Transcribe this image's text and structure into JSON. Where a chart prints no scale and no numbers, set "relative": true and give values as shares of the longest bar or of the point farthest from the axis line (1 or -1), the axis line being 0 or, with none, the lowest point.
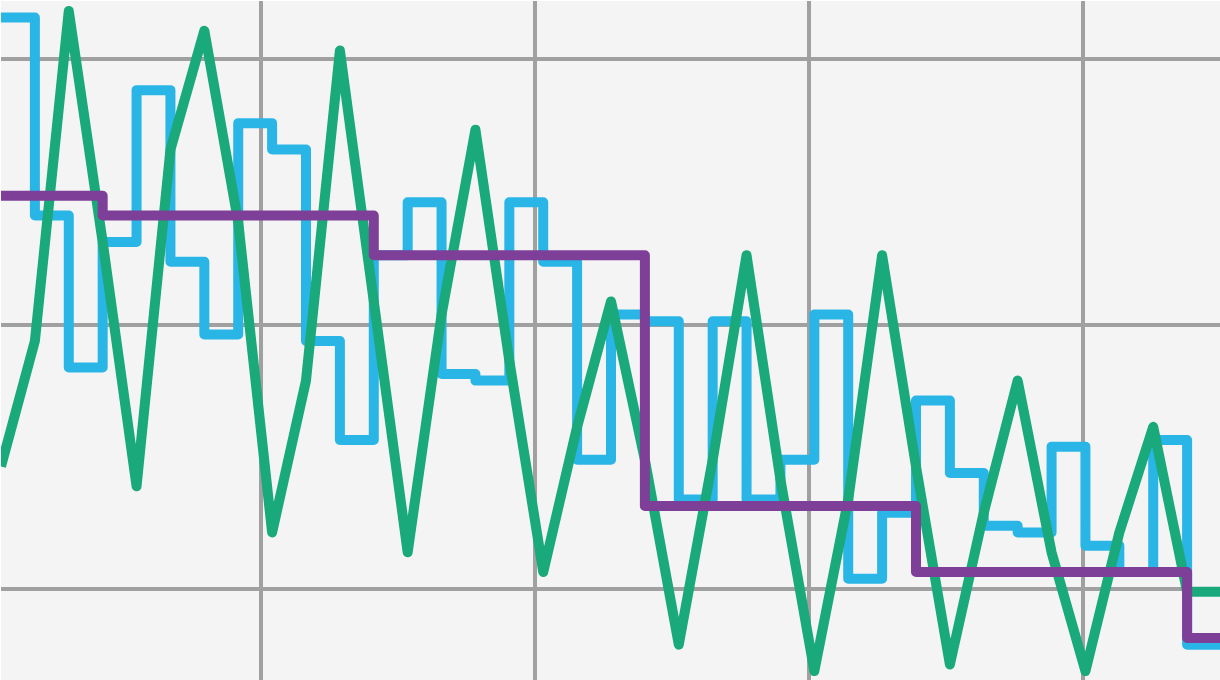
{
  "chart_data": {
    "type": "step",
    "relative": true,
    "grid": true,
    "categories": [
      null,
      null,
      null,
      null,
      null,
      null,
      null,
      null,
      null,
      null,
      null,
      null,
      null,
      null,
      null,
      null,
      null,
      null,
      null,
      null,
      null,
      null,
      null,
      null,
      null,
      null,
      null,
      null,
      null,
      null,
      null,
      null,
      null,
      null,
      null,
      null,
      null
    ],
    "series": [
      {
        "color": "#29b6e6",
        "values": [
          0.99,
          0.69,
          0.46,
          0.65,
          0.88,
          0.62,
          0.51,
          0.83,
          0.79,
          0.5,
          0.35,
          0.63,
          0.71,
          0.45,
          0.44,
          0.71,
          0.62,
          0.32,
          0.54,
          0.53,
          0.26,
          0.53,
          0.26,
          0.32,
          0.54,
          0.14,
          0.24,
          0.41,
          0.3,
          0.22,
          0.21,
          0.34,
          0.19,
          0.15,
          0.35,
          0.04,
          0.04
        ]
      },
      {
        "type": "line",
        "color": "#1aa97a",
        "values": [
          0.31,
          0.5,
          1.0,
          0.65,
          0.28,
          0.79,
          0.97,
          0.68,
          0.21,
          0.44,
          0.94,
          0.56,
          0.18,
          0.54,
          0.82,
          0.47,
          0.15,
          0.37,
          0.56,
          0.32,
          0.04,
          0.32,
          0.63,
          0.29,
          0.0,
          0.26,
          0.63,
          0.31,
          0.01,
          0.24,
          0.44,
          0.18,
          0.0,
          0.21,
          0.37,
          0.12,
          0.12
        ]
      },
      {
        "color": "#7d3f98",
        "values": [
          0.72,
          0.72,
          0.72,
          0.69,
          0.69,
          0.69,
          0.69,
          0.69,
          0.69,
          0.69,
          0.69,
          0.63,
          0.63,
          0.63,
          0.63,
          0.63,
          0.63,
          0.63,
          0.63,
          0.25,
          0.25,
          0.25,
          0.25,
          0.25,
          0.25,
          0.25,
          0.25,
          0.15,
          0.15,
          0.15,
          0.15,
          0.15,
          0.15,
          0.15,
          0.15,
          0.05,
          0.05
        ]
      }
    ]
  }
}
